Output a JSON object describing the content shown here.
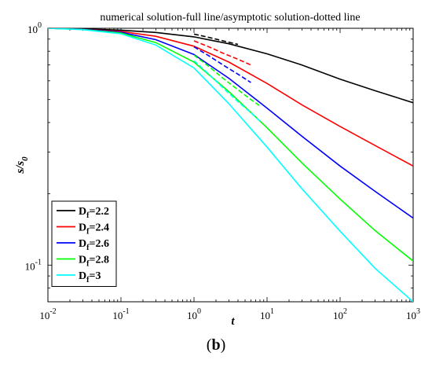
{
  "caption": {
    "open": "(",
    "letter": "b",
    "close": ")"
  },
  "chart_data": {
    "type": "line",
    "title": "numerical solution-full line/asymptotic solution-dotted line",
    "xlabel": "t",
    "ylabel_main": "s/s",
    "ylabel_sub": "0",
    "xscale": "log",
    "yscale": "log",
    "xlim": [
      0.01,
      1000
    ],
    "ylim": [
      0.07,
      1
    ],
    "x_ticks": [
      {
        "value": 0.01,
        "base": "10",
        "exp": "-2"
      },
      {
        "value": 0.1,
        "base": "10",
        "exp": "-1"
      },
      {
        "value": 1,
        "base": "10",
        "exp": "0"
      },
      {
        "value": 10,
        "base": "10",
        "exp": "1"
      },
      {
        "value": 100,
        "base": "10",
        "exp": "2"
      },
      {
        "value": 1000,
        "base": "10",
        "exp": "3"
      }
    ],
    "y_ticks": [
      {
        "value": 0.1,
        "base": "10",
        "exp": "-1"
      },
      {
        "value": 1,
        "base": "10",
        "exp": "0"
      }
    ],
    "legend_position": "lower-left",
    "series": [
      {
        "prefix": "D",
        "sub": "f",
        "suffix": "=2.2",
        "color": "#000000",
        "x": [
          0.01,
          0.03,
          0.1,
          0.3,
          1,
          3,
          10,
          30,
          100,
          300,
          1000
        ],
        "y": [
          1,
          0.995,
          0.982,
          0.96,
          0.92,
          0.86,
          0.78,
          0.7,
          0.61,
          0.545,
          0.485
        ],
        "asym_x": [
          1,
          1.6,
          2.5,
          4
        ],
        "asym_y": [
          0.945,
          0.915,
          0.885,
          0.855
        ]
      },
      {
        "prefix": "D",
        "sub": "f",
        "suffix": "=2.4",
        "color": "#ff0000",
        "x": [
          0.01,
          0.03,
          0.1,
          0.3,
          1,
          3,
          10,
          30,
          100,
          300,
          1000
        ],
        "y": [
          1,
          0.99,
          0.97,
          0.925,
          0.84,
          0.72,
          0.585,
          0.475,
          0.385,
          0.32,
          0.262
        ],
        "asym_x": [
          1,
          1.6,
          2.5,
          4,
          6
        ],
        "asym_y": [
          0.885,
          0.835,
          0.785,
          0.74,
          0.7
        ]
      },
      {
        "prefix": "D",
        "sub": "f",
        "suffix": "=2.6",
        "color": "#0000ff",
        "x": [
          0.01,
          0.03,
          0.1,
          0.3,
          1,
          3,
          10,
          30,
          100,
          300,
          1000
        ],
        "y": [
          1,
          0.99,
          0.962,
          0.895,
          0.775,
          0.615,
          0.46,
          0.35,
          0.262,
          0.205,
          0.158
        ],
        "asym_x": [
          1,
          1.6,
          2.5,
          4,
          6
        ],
        "asym_y": [
          0.835,
          0.765,
          0.7,
          0.64,
          0.59
        ]
      },
      {
        "prefix": "D",
        "sub": "f",
        "suffix": "=2.8",
        "color": "#00ff00",
        "x": [
          0.01,
          0.03,
          0.1,
          0.3,
          1,
          3,
          10,
          30,
          100,
          300,
          1000
        ],
        "y": [
          1,
          0.988,
          0.955,
          0.87,
          0.72,
          0.54,
          0.38,
          0.27,
          0.19,
          0.14,
          0.104
        ],
        "asym_x": [
          1,
          1.6,
          2.5,
          4,
          6,
          8
        ],
        "asym_y": [
          0.77,
          0.69,
          0.615,
          0.55,
          0.5,
          0.47
        ]
      },
      {
        "prefix": "D",
        "sub": "f",
        "suffix": "=3",
        "color": "#00ffff",
        "x": [
          0.01,
          0.03,
          0.1,
          0.3,
          1,
          3,
          10,
          30,
          100,
          300,
          1000
        ],
        "y": [
          1,
          0.987,
          0.948,
          0.85,
          0.68,
          0.48,
          0.315,
          0.21,
          0.139,
          0.097,
          0.07
        ],
        "asym_x": [
          1,
          1.6,
          2.5,
          4,
          6,
          8
        ],
        "asym_y": [
          0.73,
          0.64,
          0.56,
          0.49,
          0.44,
          0.405
        ]
      }
    ]
  }
}
